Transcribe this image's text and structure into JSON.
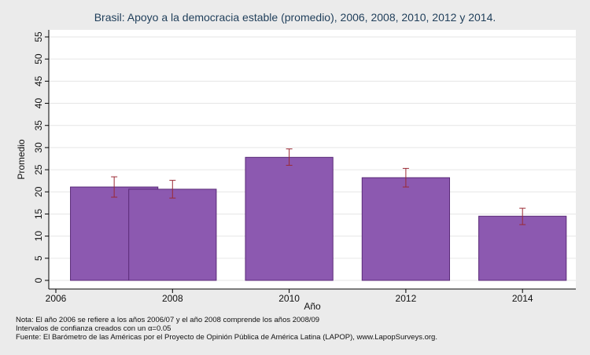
{
  "chart_data": {
    "type": "bar",
    "title": "Brasil: Apoyo a la democracia estable (promedio), 2006, 2008, 2010, 2012 y 2014.",
    "xlabel": "Año",
    "ylabel": "Promedio",
    "x_ticks": [
      2006,
      2008,
      2010,
      2012,
      2014
    ],
    "xlim": [
      2006,
      2014.7
    ],
    "y_ticks": [
      0,
      5,
      10,
      15,
      20,
      25,
      30,
      35,
      40,
      45,
      50,
      55
    ],
    "ylim": [
      0,
      56
    ],
    "grid": true,
    "bar_color": "#8c59b0",
    "error_color": "#9b2a35",
    "bars": [
      {
        "x": 2007,
        "value": 21.1,
        "ci": [
          18.8,
          23.4
        ]
      },
      {
        "x": 2008,
        "value": 20.6,
        "ci": [
          18.6,
          22.6
        ]
      },
      {
        "x": 2010,
        "value": 27.8,
        "ci": [
          26.0,
          29.7
        ]
      },
      {
        "x": 2012,
        "value": 23.2,
        "ci": [
          21.1,
          25.3
        ]
      },
      {
        "x": 2014,
        "value": 14.5,
        "ci": [
          12.6,
          16.3
        ]
      }
    ],
    "bar_width_years": 1.5
  },
  "notes": {
    "line1": "Nota: El año 2006 se refiere a los años 2006/07 y el año 2008 comprende los años 2008/09",
    "line2": "Intervalos de confianza creados con un α=0.05",
    "line3": "Fuente: El Barómetro de las Américas por el Proyecto de Opinión Pública de América Latina (LAPOP), www.LapopSurveys.org."
  }
}
